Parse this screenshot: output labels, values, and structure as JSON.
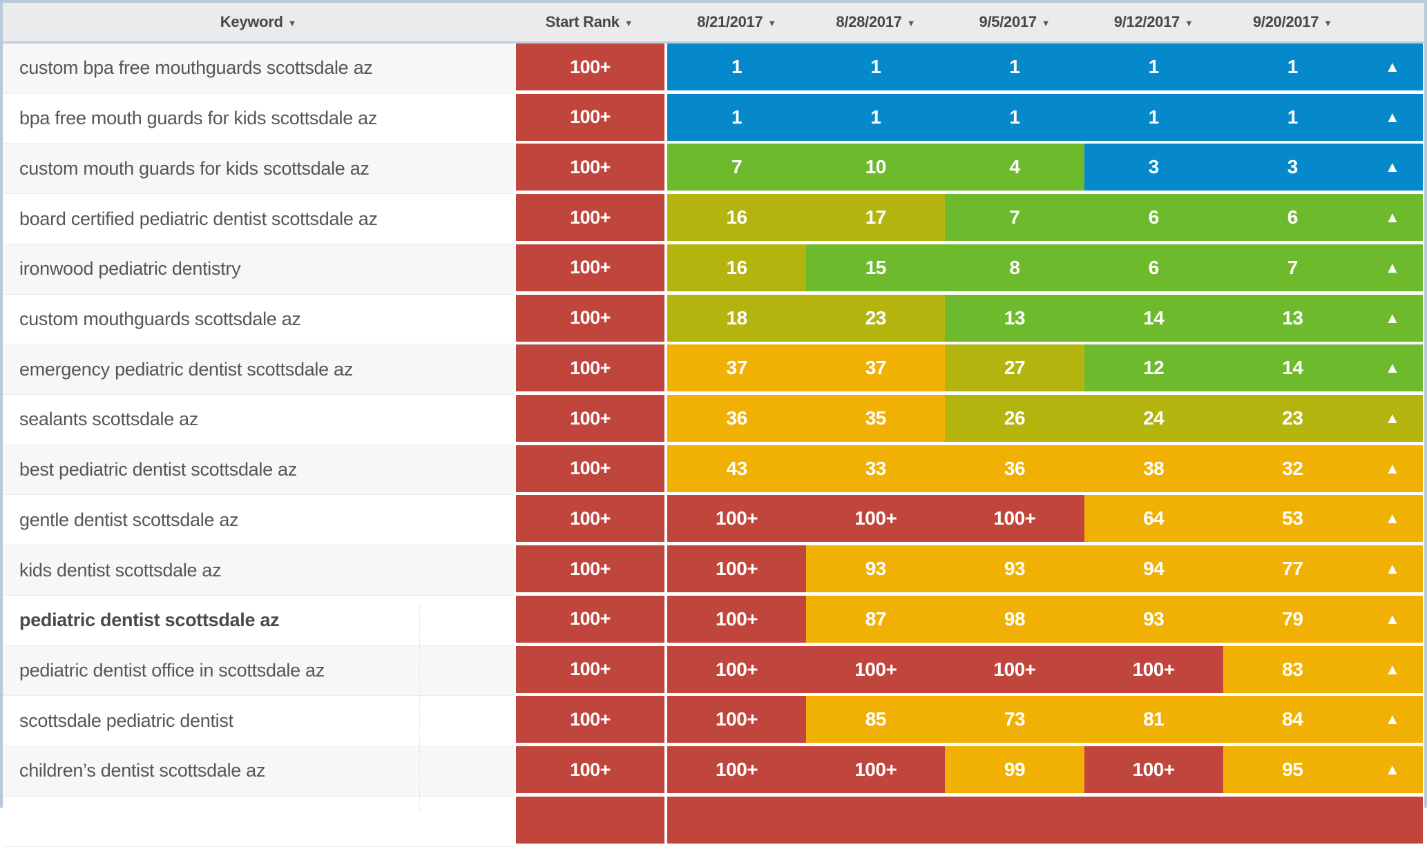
{
  "header": {
    "columns": [
      {
        "label": "Keyword",
        "sort_icon": "▼"
      },
      {
        "label": "Start Rank",
        "sort_icon": "▼"
      },
      {
        "label": "8/21/2017",
        "sort_icon": "▼"
      },
      {
        "label": "8/28/2017",
        "sort_icon": "▼"
      },
      {
        "label": "9/5/2017",
        "sort_icon": "▼"
      },
      {
        "label": "9/12/2017",
        "sort_icon": "▼"
      },
      {
        "label": "9/20/2017",
        "sort_icon": "▼"
      }
    ]
  },
  "colors": {
    "rank_top": "#0589cb",
    "rank_good": "#6eba2d",
    "rank_mid": "#b4b40e",
    "rank_low": "#f1b104",
    "rank_none": "#c0453c",
    "header_bg": "#ebebeb",
    "frame_border": "#b8cada"
  },
  "rows": [
    {
      "keyword": "custom bpa free mouthguards scottsdale az",
      "bold": false,
      "start_rank": "100+",
      "start_color": "red",
      "cells": [
        {
          "value": "1",
          "color": "blue"
        },
        {
          "value": "1",
          "color": "blue"
        },
        {
          "value": "1",
          "color": "blue"
        },
        {
          "value": "1",
          "color": "blue"
        },
        {
          "value": "1",
          "color": "blue"
        }
      ],
      "trend": {
        "icon": "▲",
        "color": "blue"
      }
    },
    {
      "keyword": "bpa free mouth guards for kids scottsdale az",
      "bold": false,
      "start_rank": "100+",
      "start_color": "red",
      "cells": [
        {
          "value": "1",
          "color": "blue"
        },
        {
          "value": "1",
          "color": "blue"
        },
        {
          "value": "1",
          "color": "blue"
        },
        {
          "value": "1",
          "color": "blue"
        },
        {
          "value": "1",
          "color": "blue"
        }
      ],
      "trend": {
        "icon": "▲",
        "color": "blue"
      }
    },
    {
      "keyword": "custom mouth guards for kids scottsdale az",
      "bold": false,
      "start_rank": "100+",
      "start_color": "red",
      "cells": [
        {
          "value": "7",
          "color": "green"
        },
        {
          "value": "10",
          "color": "green"
        },
        {
          "value": "4",
          "color": "green"
        },
        {
          "value": "3",
          "color": "blue"
        },
        {
          "value": "3",
          "color": "blue"
        }
      ],
      "trend": {
        "icon": "▲",
        "color": "blue"
      }
    },
    {
      "keyword": "board certified pediatric dentist scottsdale az",
      "bold": false,
      "start_rank": "100+",
      "start_color": "red",
      "cells": [
        {
          "value": "16",
          "color": "olive"
        },
        {
          "value": "17",
          "color": "olive"
        },
        {
          "value": "7",
          "color": "green"
        },
        {
          "value": "6",
          "color": "green"
        },
        {
          "value": "6",
          "color": "green"
        }
      ],
      "trend": {
        "icon": "▲",
        "color": "green"
      }
    },
    {
      "keyword": "ironwood pediatric dentistry",
      "bold": false,
      "start_rank": "100+",
      "start_color": "red",
      "cells": [
        {
          "value": "16",
          "color": "olive"
        },
        {
          "value": "15",
          "color": "green"
        },
        {
          "value": "8",
          "color": "green"
        },
        {
          "value": "6",
          "color": "green"
        },
        {
          "value": "7",
          "color": "green"
        }
      ],
      "trend": {
        "icon": "▲",
        "color": "green"
      }
    },
    {
      "keyword": "custom mouthguards scottsdale az",
      "bold": false,
      "start_rank": "100+",
      "start_color": "red",
      "cells": [
        {
          "value": "18",
          "color": "olive"
        },
        {
          "value": "23",
          "color": "olive"
        },
        {
          "value": "13",
          "color": "green"
        },
        {
          "value": "14",
          "color": "green"
        },
        {
          "value": "13",
          "color": "green"
        }
      ],
      "trend": {
        "icon": "▲",
        "color": "green"
      }
    },
    {
      "keyword": "emergency pediatric dentist scottsdale az",
      "bold": false,
      "start_rank": "100+",
      "start_color": "red",
      "cells": [
        {
          "value": "37",
          "color": "orange"
        },
        {
          "value": "37",
          "color": "orange"
        },
        {
          "value": "27",
          "color": "olive"
        },
        {
          "value": "12",
          "color": "green"
        },
        {
          "value": "14",
          "color": "green"
        }
      ],
      "trend": {
        "icon": "▲",
        "color": "green"
      }
    },
    {
      "keyword": "sealants scottsdale az",
      "bold": false,
      "start_rank": "100+",
      "start_color": "red",
      "cells": [
        {
          "value": "36",
          "color": "orange"
        },
        {
          "value": "35",
          "color": "orange"
        },
        {
          "value": "26",
          "color": "olive"
        },
        {
          "value": "24",
          "color": "olive"
        },
        {
          "value": "23",
          "color": "olive"
        }
      ],
      "trend": {
        "icon": "▲",
        "color": "olive"
      }
    },
    {
      "keyword": "best pediatric dentist scottsdale az",
      "bold": false,
      "start_rank": "100+",
      "start_color": "red",
      "cells": [
        {
          "value": "43",
          "color": "orange"
        },
        {
          "value": "33",
          "color": "orange"
        },
        {
          "value": "36",
          "color": "orange"
        },
        {
          "value": "38",
          "color": "orange"
        },
        {
          "value": "32",
          "color": "orange"
        }
      ],
      "trend": {
        "icon": "▲",
        "color": "orange"
      }
    },
    {
      "keyword": "gentle dentist scottsdale az",
      "bold": false,
      "start_rank": "100+",
      "start_color": "red",
      "cells": [
        {
          "value": "100+",
          "color": "red"
        },
        {
          "value": "100+",
          "color": "red"
        },
        {
          "value": "100+",
          "color": "red"
        },
        {
          "value": "64",
          "color": "orange"
        },
        {
          "value": "53",
          "color": "orange"
        }
      ],
      "trend": {
        "icon": "▲",
        "color": "orange"
      }
    },
    {
      "keyword": "kids dentist scottsdale az",
      "bold": false,
      "start_rank": "100+",
      "start_color": "red",
      "cells": [
        {
          "value": "100+",
          "color": "red"
        },
        {
          "value": "93",
          "color": "orange"
        },
        {
          "value": "93",
          "color": "orange"
        },
        {
          "value": "94",
          "color": "orange"
        },
        {
          "value": "77",
          "color": "orange"
        }
      ],
      "trend": {
        "icon": "▲",
        "color": "orange"
      }
    },
    {
      "keyword": "pediatric dentist scottsdale az",
      "bold": true,
      "start_rank": "100+",
      "start_color": "red",
      "cells": [
        {
          "value": "100+",
          "color": "red"
        },
        {
          "value": "87",
          "color": "orange"
        },
        {
          "value": "98",
          "color": "orange"
        },
        {
          "value": "93",
          "color": "orange"
        },
        {
          "value": "79",
          "color": "orange"
        }
      ],
      "trend": {
        "icon": "▲",
        "color": "orange"
      }
    },
    {
      "keyword": "pediatric dentist office in scottsdale az",
      "bold": false,
      "start_rank": "100+",
      "start_color": "red",
      "cells": [
        {
          "value": "100+",
          "color": "red"
        },
        {
          "value": "100+",
          "color": "red"
        },
        {
          "value": "100+",
          "color": "red"
        },
        {
          "value": "100+",
          "color": "red"
        },
        {
          "value": "83",
          "color": "orange"
        }
      ],
      "trend": {
        "icon": "▲",
        "color": "orange"
      }
    },
    {
      "keyword": "scottsdale pediatric dentist",
      "bold": false,
      "start_rank": "100+",
      "start_color": "red",
      "cells": [
        {
          "value": "100+",
          "color": "red"
        },
        {
          "value": "85",
          "color": "orange"
        },
        {
          "value": "73",
          "color": "orange"
        },
        {
          "value": "81",
          "color": "orange"
        },
        {
          "value": "84",
          "color": "orange"
        }
      ],
      "trend": {
        "icon": "▲",
        "color": "orange"
      }
    },
    {
      "keyword": "children’s dentist scottsdale az",
      "bold": false,
      "start_rank": "100+",
      "start_color": "red",
      "cells": [
        {
          "value": "100+",
          "color": "red"
        },
        {
          "value": "100+",
          "color": "red"
        },
        {
          "value": "99",
          "color": "orange"
        },
        {
          "value": "100+",
          "color": "red"
        },
        {
          "value": "95",
          "color": "orange"
        }
      ],
      "trend": {
        "icon": "▲",
        "color": "orange"
      }
    },
    {
      "keyword": "",
      "bold": false,
      "start_rank": "",
      "start_color": "red",
      "cells": [
        {
          "value": "",
          "color": "red"
        },
        {
          "value": "",
          "color": "red"
        },
        {
          "value": "",
          "color": "red"
        },
        {
          "value": "",
          "color": "red"
        },
        {
          "value": "",
          "color": "red"
        }
      ],
      "trend": {
        "icon": "",
        "color": "red"
      }
    }
  ]
}
